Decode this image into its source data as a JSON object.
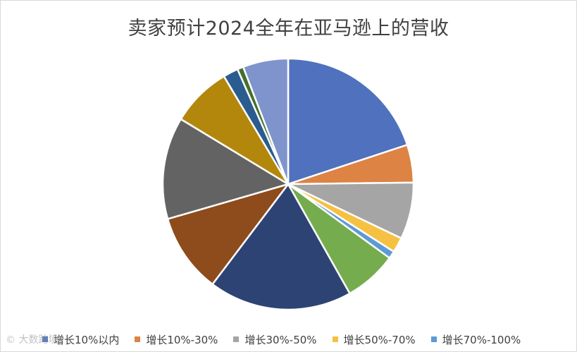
{
  "chart_data": {
    "type": "pie",
    "title": "卖家预计2024全年在亚马逊上的营收",
    "series": [
      {
        "label": "增长10%以内",
        "value": 20.5,
        "color": "#4f71be"
      },
      {
        "label": "增长10%-30%",
        "value": 5.0,
        "color": "#dd8344"
      },
      {
        "label": "增长30%-50%",
        "value": 7.5,
        "color": "#a5a5a5"
      },
      {
        "label": "增长50%-70%",
        "value": 2.0,
        "color": "#f6c142"
      },
      {
        "label": "增长70%-100%",
        "value": 1.0,
        "color": "#5b9bd5"
      },
      {
        "label": "",
        "value": 7.0,
        "color": "#75ac4d"
      },
      {
        "label": "",
        "value": 19.0,
        "color": "#2d4374"
      },
      {
        "label": "",
        "value": 10.5,
        "color": "#8e4b1c"
      },
      {
        "label": "",
        "value": 13.5,
        "color": "#636363"
      },
      {
        "label": "",
        "value": 8.0,
        "color": "#b2870c"
      },
      {
        "label": "",
        "value": 2.0,
        "color": "#2b5c90"
      },
      {
        "label": "",
        "value": 0.8,
        "color": "#466f2c"
      },
      {
        "label": "",
        "value": 6.0,
        "color": "#7f94cc"
      }
    ],
    "legend_position": "bottom",
    "start_angle": "12 o'clock, clockwise"
  },
  "watermark": {
    "text": "©  大数跨境"
  }
}
